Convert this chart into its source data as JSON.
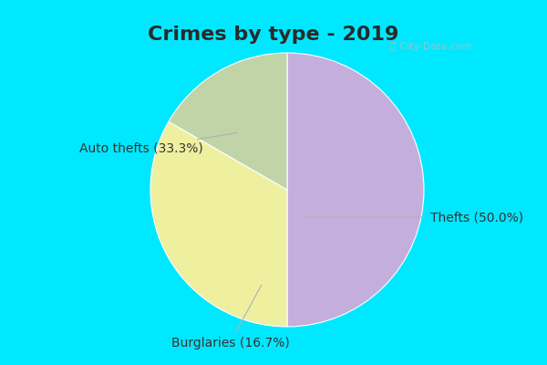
{
  "title": "Crimes by type - 2019",
  "slices": [
    {
      "label": "Thefts (50.0%)",
      "value": 50.0,
      "color": "#c4aedc"
    },
    {
      "label": "Auto thefts (33.3%)",
      "value": 33.3,
      "color": "#eef0a0"
    },
    {
      "label": "Burglaries (16.7%)",
      "value": 16.7,
      "color": "#c0d4a8"
    }
  ],
  "bg_color_outer": "#00e8ff",
  "bg_color_inner": "#c8e8d8",
  "title_fontsize": 16,
  "label_fontsize": 10,
  "watermark": "ⓘ City-Data.com",
  "title_color": "#2a2a2a"
}
